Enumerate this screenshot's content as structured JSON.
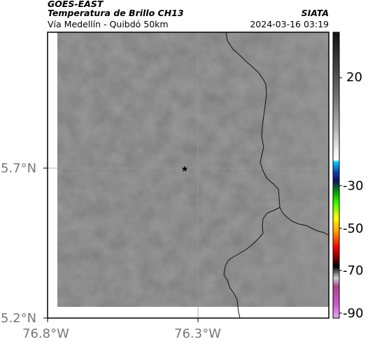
{
  "header": {
    "satellite": "GOES-EAST",
    "product": "Temperatura de Brillo CH13",
    "org": "SIATA",
    "region": "Vía Medellín - Quibdó 50km",
    "datetime": "2024-03-16 03:19"
  },
  "axes": {
    "lat_ticks": [
      "5.7°N",
      "5.2°N"
    ],
    "lon_ticks": [
      "76.8°W",
      "76.3°W"
    ]
  },
  "colorbar": {
    "ticks": [
      "20",
      "-30",
      "-50",
      "-70",
      "-90"
    ]
  },
  "map": {
    "marker": "star-marker",
    "colors": {
      "background_gray": "#7c7c7c",
      "frame": "#000000",
      "border_line": "#111111",
      "gridline": "#9a9a9a"
    }
  }
}
